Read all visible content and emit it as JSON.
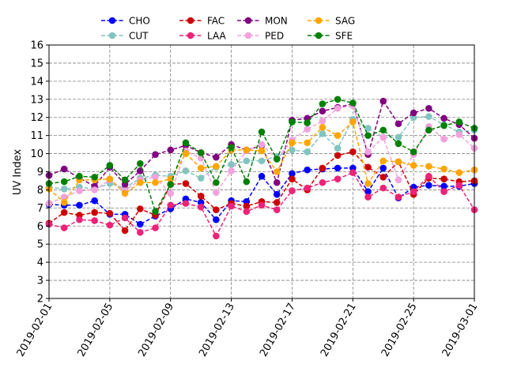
{
  "chart_data": {
    "type": "line",
    "title": "",
    "xlabel": "",
    "ylabel": "UV Index",
    "ylim": [
      2,
      16
    ],
    "yticks": [
      2,
      3,
      4,
      5,
      6,
      7,
      8,
      9,
      10,
      11,
      12,
      13,
      14,
      15,
      16
    ],
    "x_start": "2019-02-01",
    "xticks": [
      "2019-02-01",
      "2019-02-05",
      "2019-02-09",
      "2019-02-13",
      "2019-02-17",
      "2019-02-21",
      "2019-02-25",
      "2019-03-01"
    ],
    "grid": true,
    "grid_style": "dashed",
    "legend_position": "top-center",
    "x": [
      "2019-02-01",
      "2019-02-02",
      "2019-02-03",
      "2019-02-04",
      "2019-02-05",
      "2019-02-06",
      "2019-02-07",
      "2019-02-08",
      "2019-02-09",
      "2019-02-10",
      "2019-02-11",
      "2019-02-12",
      "2019-02-13",
      "2019-02-14",
      "2019-02-15",
      "2019-02-16",
      "2019-02-17",
      "2019-02-18",
      "2019-02-19",
      "2019-02-20",
      "2019-02-21",
      "2019-02-22",
      "2019-02-23",
      "2019-02-24",
      "2019-02-25",
      "2019-02-26",
      "2019-02-27",
      "2019-02-28",
      "2019-03-01"
    ],
    "series": [
      {
        "name": "CHO",
        "color": "#0000ff",
        "values": [
          7.2,
          7.15,
          7.15,
          7.4,
          6.65,
          6.65,
          6.1,
          6.55,
          6.95,
          7.5,
          7.3,
          6.35,
          7.4,
          7.35,
          8.75,
          7.75,
          8.9,
          9.1,
          9.15,
          9.2,
          9.2,
          7.9,
          9.2,
          7.55,
          8.15,
          8.25,
          8.2,
          8.2,
          8.35
        ]
      },
      {
        "name": "CUT",
        "color": "#82c4bf",
        "values": [
          8.15,
          8.05,
          8.15,
          8.05,
          8.35,
          8.1,
          8.65,
          8.8,
          8.75,
          9.05,
          8.65,
          9.25,
          9.4,
          9.6,
          9.6,
          9.85,
          10.2,
          10.1,
          11.1,
          10.3,
          11.9,
          11.4,
          10.9,
          10.9,
          12.0,
          12.05,
          11.6,
          11.2,
          11.3
        ]
      },
      {
        "name": "FAC",
        "color": "#cc0000",
        "values": [
          6.15,
          6.75,
          6.6,
          6.75,
          6.7,
          5.75,
          6.95,
          6.6,
          8.3,
          8.35,
          7.65,
          6.9,
          7.25,
          7.1,
          7.35,
          7.3,
          8.6,
          8.0,
          9.2,
          9.9,
          10.1,
          9.25,
          8.7,
          9.55,
          7.75,
          8.65,
          8.6,
          8.45,
          8.5
        ]
      },
      {
        "name": "LAA",
        "color": "#ee2277",
        "values": [
          6.1,
          5.9,
          6.35,
          6.3,
          6.05,
          6.45,
          5.65,
          5.9,
          7.15,
          7.25,
          7.05,
          5.45,
          7.1,
          6.8,
          7.15,
          6.9,
          7.95,
          8.1,
          8.4,
          8.6,
          8.95,
          7.6,
          8.1,
          7.6,
          7.9,
          8.75,
          7.9,
          8.25,
          6.9
        ]
      },
      {
        "name": "MON",
        "color": "#800080",
        "values": [
          8.8,
          9.15,
          8.65,
          8.2,
          9.25,
          8.3,
          9.05,
          9.95,
          10.2,
          10.45,
          10.05,
          9.8,
          10.5,
          10.2,
          10.45,
          8.4,
          11.85,
          11.95,
          12.35,
          12.55,
          12.75,
          9.95,
          12.9,
          11.65,
          12.25,
          12.5,
          11.95,
          11.6,
          10.85
        ]
      },
      {
        "name": "PED",
        "color": "#f2a2dc",
        "values": [
          7.25,
          7.6,
          7.95,
          8.0,
          8.55,
          7.95,
          8.55,
          8.7,
          7.8,
          10.15,
          9.75,
          7.85,
          9.05,
          10.15,
          10.5,
          9.7,
          10.75,
          11.35,
          11.8,
          12.5,
          12.65,
          10.1,
          10.9,
          8.55,
          9.95,
          11.5,
          10.8,
          11.05,
          10.3
        ]
      },
      {
        "name": "SAG",
        "color": "#ffa500",
        "values": [
          8.05,
          7.3,
          8.55,
          8.55,
          8.6,
          7.8,
          8.4,
          8.4,
          8.6,
          10.0,
          9.2,
          9.3,
          10.2,
          10.2,
          10.15,
          9.0,
          10.6,
          10.6,
          11.45,
          11.0,
          11.75,
          8.35,
          9.6,
          9.55,
          9.35,
          9.3,
          9.15,
          8.95,
          9.1
        ]
      },
      {
        "name": "SFE",
        "color": "#008000",
        "values": [
          8.35,
          8.45,
          8.75,
          8.7,
          9.35,
          8.55,
          9.45,
          6.8,
          8.3,
          10.6,
          10.05,
          8.4,
          10.35,
          8.45,
          11.2,
          9.7,
          11.75,
          11.7,
          12.75,
          13.0,
          12.8,
          11.0,
          11.3,
          10.55,
          10.1,
          11.3,
          11.55,
          11.75,
          11.4
        ]
      }
    ]
  }
}
